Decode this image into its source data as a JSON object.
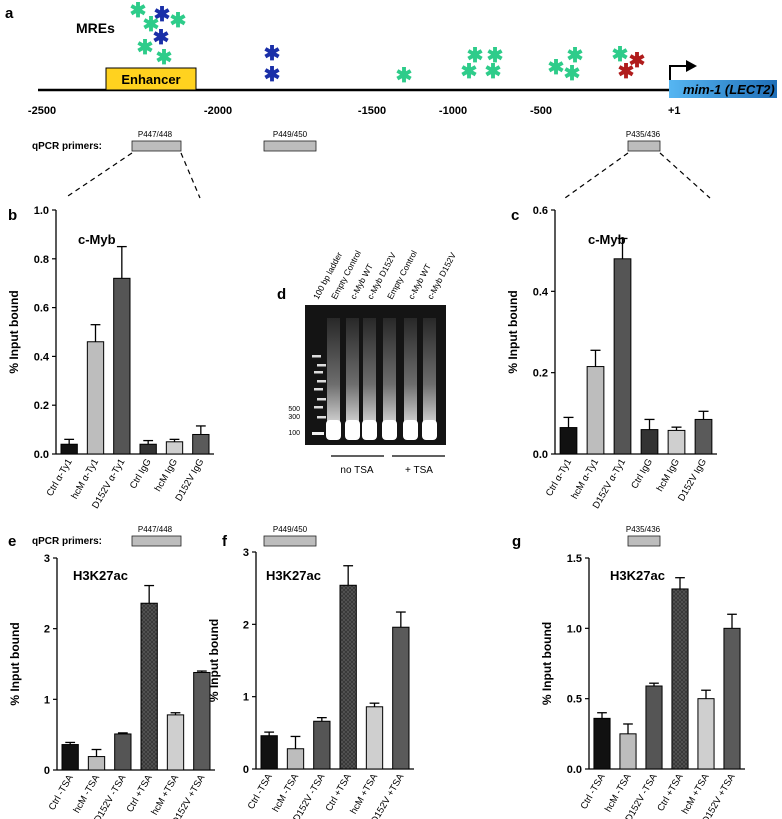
{
  "panel_a": {
    "letter": "a",
    "mre_label": "MREs",
    "enhancer_label": "Enhancer",
    "gene_label": "mim-1 (LECT2)",
    "plus_one": "+1",
    "axis_ticks": [
      "-2500",
      "-2000",
      "-1500",
      "-1000",
      "-500"
    ],
    "primers_label": "qPCR primers:",
    "primers": [
      "P447/448",
      "P449/450",
      "P435/436"
    ],
    "colors": {
      "green": "#2ecc8a",
      "blue": "#1a2fa8",
      "red": "#b01c1c",
      "enhancer": "#ffd21f",
      "gene": "#3a9de0"
    }
  },
  "panel_d": {
    "letter": "d",
    "lanes": [
      "100 bp ladder",
      "Empty Control",
      "c-Myb WT",
      "c-Myb D152V",
      "Empty Control",
      "c-Myb WT",
      "c-Myb D152V"
    ],
    "ladder": [
      "500",
      "300",
      "100"
    ],
    "groups": [
      "no TSA",
      "+ TSA"
    ]
  },
  "chart_data": [
    {
      "panel": "b",
      "type": "bar",
      "title": "c-Myb",
      "ylabel": "% Input bound",
      "ylim": [
        0,
        1.0
      ],
      "yticks": [
        "0.0",
        "0.2",
        "0.4",
        "0.6",
        "0.8",
        "1.0"
      ],
      "categories": [
        "Ctrl α-Ty1",
        "hcM α-Ty1",
        "D152V α-Ty1",
        "Ctrl IgG",
        "hcM IgG",
        "D152V IgG"
      ],
      "values": [
        0.04,
        0.46,
        0.72,
        0.04,
        0.05,
        0.08
      ],
      "errors": [
        0.02,
        0.07,
        0.13,
        0.015,
        0.01,
        0.035
      ],
      "colors": [
        "#111111",
        "#bdbdbd",
        "#555555",
        "#333333",
        "#cfcfcf",
        "#5a5a5a"
      ]
    },
    {
      "panel": "c",
      "type": "bar",
      "title": "c-Myb",
      "ylabel": "% Input bound",
      "ylim": [
        0,
        0.6
      ],
      "yticks": [
        "0.0",
        "0.2",
        "0.4",
        "0.6"
      ],
      "categories": [
        "Ctrl α-Ty1",
        "hcM α-Ty1",
        "D152V α-Ty1",
        "Ctrl IgG",
        "hcM IgG",
        "D152V IgG"
      ],
      "values": [
        0.065,
        0.215,
        0.48,
        0.06,
        0.058,
        0.085
      ],
      "errors": [
        0.025,
        0.04,
        0.05,
        0.025,
        0.008,
        0.02
      ],
      "colors": [
        "#111111",
        "#bdbdbd",
        "#555555",
        "#333333",
        "#cfcfcf",
        "#5a5a5a"
      ]
    },
    {
      "panel": "e",
      "type": "bar",
      "title": "H3K27ac",
      "ylabel": "% Input bound",
      "ylim": [
        0,
        3
      ],
      "yticks": [
        "0",
        "1",
        "2",
        "3"
      ],
      "primer": "P447/448",
      "primers_label": "qPCR primers:",
      "categories": [
        "Ctrl -TSA",
        "hcM -TSA",
        "D152V -TSA",
        "Ctrl +TSA",
        "hcM +TSA",
        "D152V +TSA"
      ],
      "values": [
        0.36,
        0.19,
        0.51,
        2.36,
        0.78,
        1.38
      ],
      "errors": [
        0.03,
        0.1,
        0.015,
        0.25,
        0.03,
        0.02
      ],
      "colors": [
        "#111111",
        "#bdbdbd",
        "#555555",
        "#333333",
        "#cfcfcf",
        "#5a5a5a"
      ]
    },
    {
      "panel": "f",
      "type": "bar",
      "title": "H3K27ac",
      "ylabel": "% Input bound",
      "ylim": [
        0,
        3
      ],
      "yticks": [
        "0",
        "1",
        "2",
        "3"
      ],
      "primer": "P449/450",
      "categories": [
        "Ctrl -TSA",
        "hcM -TSA",
        "D152V -TSA",
        "Ctrl +TSA",
        "hcM +TSA",
        "D152V +TSA"
      ],
      "values": [
        0.46,
        0.28,
        0.66,
        2.54,
        0.86,
        1.96
      ],
      "errors": [
        0.05,
        0.17,
        0.05,
        0.27,
        0.05,
        0.21
      ],
      "colors": [
        "#111111",
        "#bdbdbd",
        "#555555",
        "#333333",
        "#cfcfcf",
        "#5a5a5a"
      ]
    },
    {
      "panel": "g",
      "type": "bar",
      "title": "H3K27ac",
      "ylabel": "% Input bound",
      "ylim": [
        0,
        1.5
      ],
      "yticks": [
        "0.0",
        "0.5",
        "1.0",
        "1.5"
      ],
      "primer": "P435/436",
      "categories": [
        "Ctrl -TSA",
        "hcM -TSA",
        "D152V -TSA",
        "Ctrl +TSA",
        "hcM +TSA",
        "D152V +TSA"
      ],
      "values": [
        0.36,
        0.25,
        0.59,
        1.28,
        0.5,
        1.0
      ],
      "errors": [
        0.04,
        0.07,
        0.02,
        0.08,
        0.06,
        0.1
      ],
      "colors": [
        "#111111",
        "#bdbdbd",
        "#555555",
        "#333333",
        "#cfcfcf",
        "#5a5a5a"
      ]
    }
  ]
}
